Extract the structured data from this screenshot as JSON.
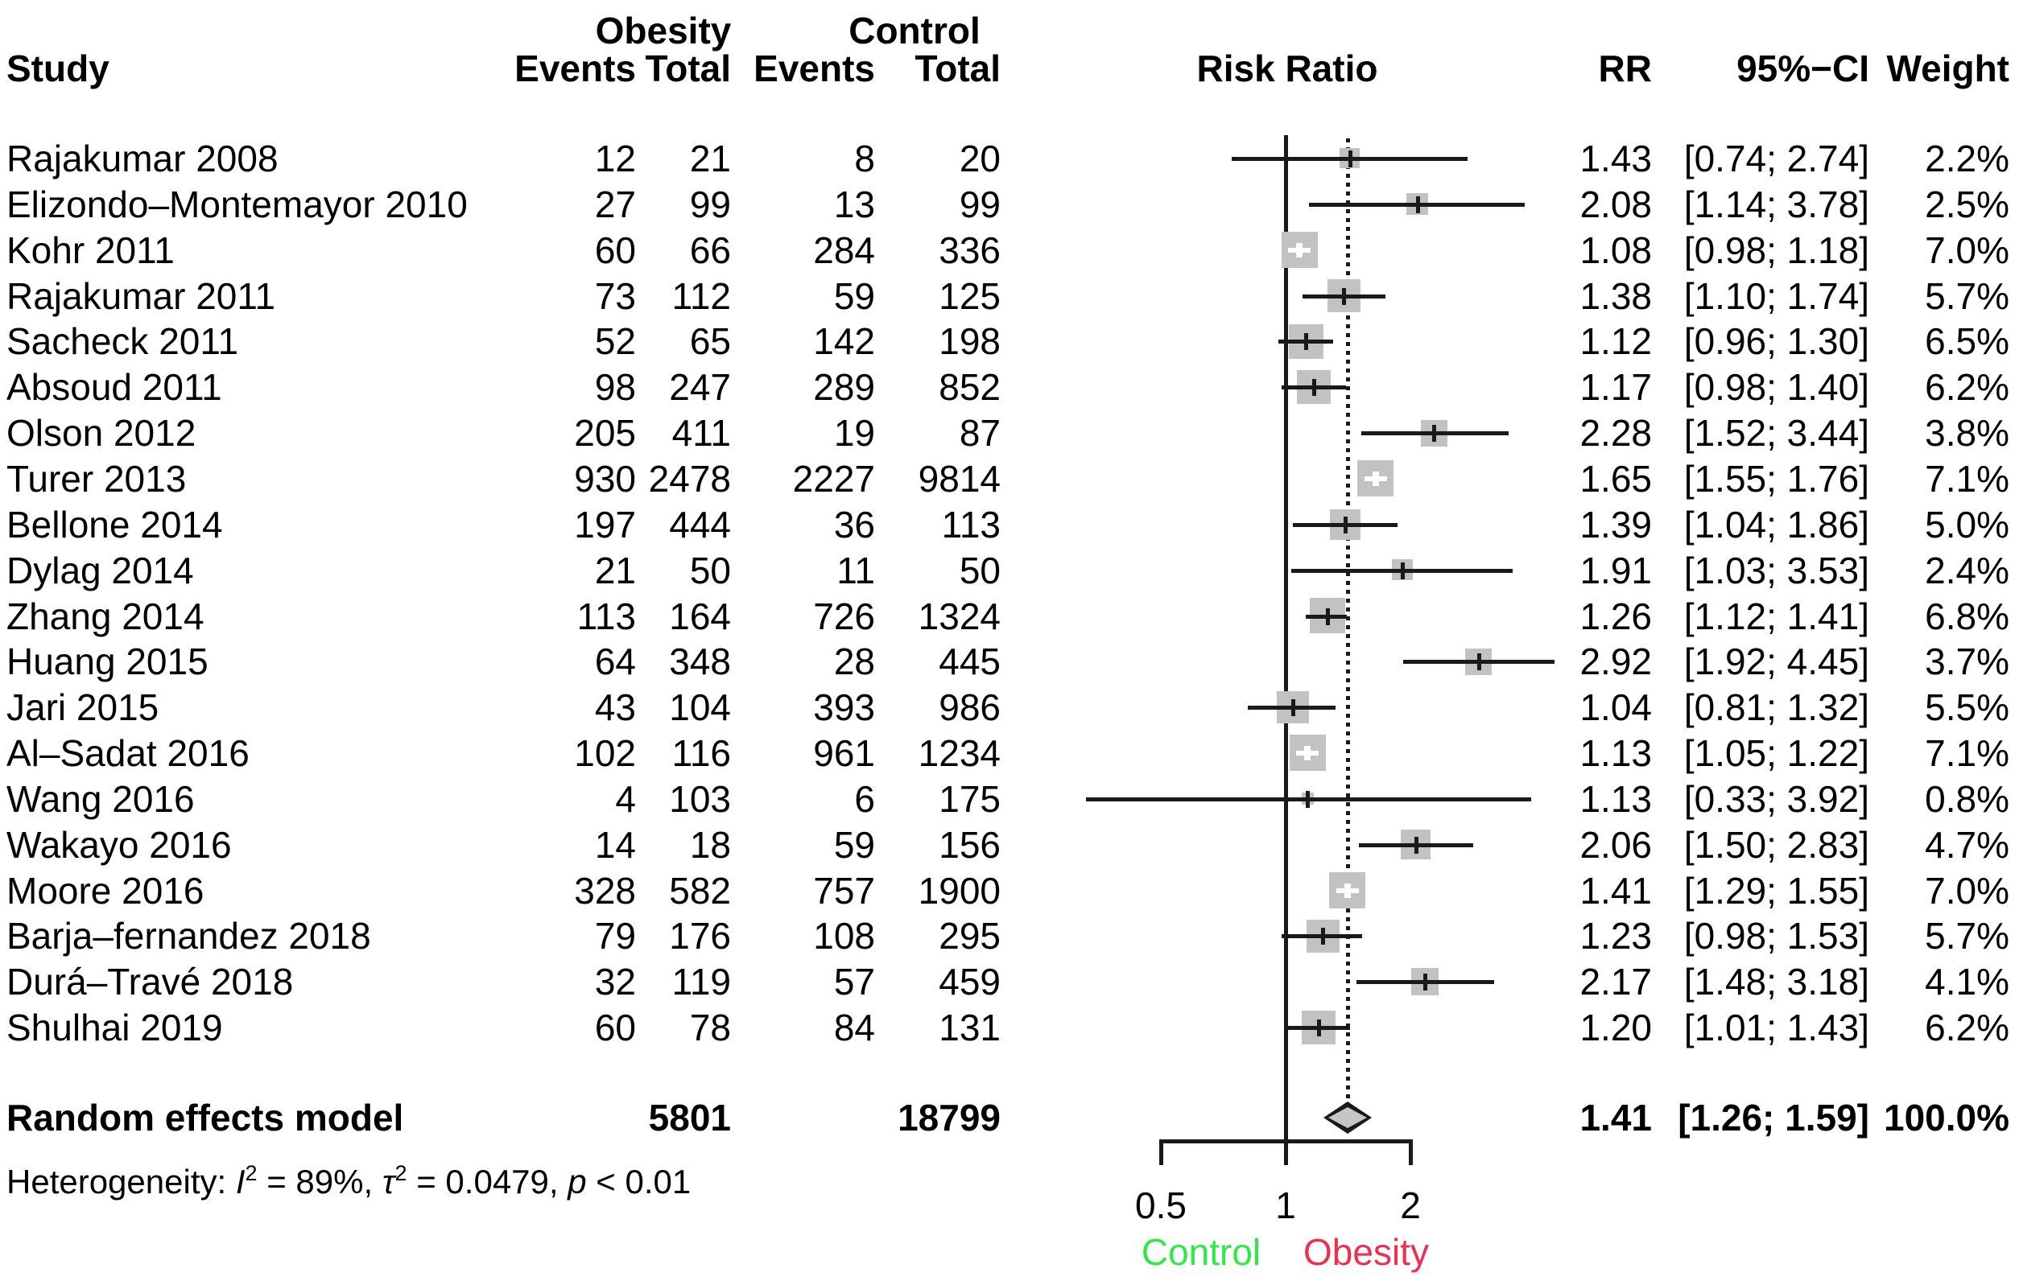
{
  "header": {
    "group1": "Obesity",
    "group2": "Control",
    "study": "Study",
    "events_obesity": "Events",
    "total_obesity": "Total",
    "events_control": "Events",
    "total_control": "Total",
    "risk_ratio": "Risk Ratio",
    "rr": "RR",
    "ci": "95%−CI",
    "weight": "Weight"
  },
  "heterogeneity_segments": [
    {
      "t": "Heterogeneity: "
    },
    {
      "t": "I",
      "style": "i"
    },
    {
      "t": "2",
      "style": "sup"
    },
    {
      "t": " = 89%, "
    },
    {
      "t": "τ",
      "style": "i"
    },
    {
      "t": "2",
      "style": "sup"
    },
    {
      "t": " = 0.0479, "
    },
    {
      "t": "p",
      "style": "i"
    },
    {
      "t": " < 0.01"
    }
  ],
  "axis": {
    "ticks": [
      {
        "label": "0.5",
        "value": 0.5
      },
      {
        "label": "1",
        "value": 1
      },
      {
        "label": "2",
        "value": 2
      }
    ],
    "left_label": "Control",
    "right_label": "Obesity"
  },
  "colors": {
    "control_label": "#31e946",
    "obesity_label": "#ee2f4d",
    "box": "#c2c2c2",
    "diamond": "#c6c6c6",
    "ink": "#1a1a1a"
  },
  "chart_data": {
    "type": "scatter",
    "subtype": "forest_plot_meta_analysis",
    "effect_measure": "Risk Ratio",
    "x_scale": "log",
    "x_ticks": [
      0.5,
      1,
      2
    ],
    "xlim": [
      0.33,
      4.45
    ],
    "direction_labels": {
      "left": "Control",
      "right": "Obesity"
    },
    "studies": [
      {
        "name": "Rajakumar 2008",
        "obesity_events": 12,
        "obesity_total": 21,
        "control_events": 8,
        "control_total": 20,
        "rr": 1.43,
        "ci_low": 0.74,
        "ci_high": 2.74,
        "weight_pct": 2.2
      },
      {
        "name": "Elizondo–Montemayor 2010",
        "obesity_events": 27,
        "obesity_total": 99,
        "control_events": 13,
        "control_total": 99,
        "rr": 2.08,
        "ci_low": 1.14,
        "ci_high": 3.78,
        "weight_pct": 2.5
      },
      {
        "name": "Kohr 2011",
        "obesity_events": 60,
        "obesity_total": 66,
        "control_events": 284,
        "control_total": 336,
        "rr": 1.08,
        "ci_low": 0.98,
        "ci_high": 1.18,
        "weight_pct": 7.0
      },
      {
        "name": "Rajakumar 2011",
        "obesity_events": 73,
        "obesity_total": 112,
        "control_events": 59,
        "control_total": 125,
        "rr": 1.38,
        "ci_low": 1.1,
        "ci_high": 1.74,
        "weight_pct": 5.7
      },
      {
        "name": "Sacheck 2011",
        "obesity_events": 52,
        "obesity_total": 65,
        "control_events": 142,
        "control_total": 198,
        "rr": 1.12,
        "ci_low": 0.96,
        "ci_high": 1.3,
        "weight_pct": 6.5
      },
      {
        "name": "Absoud 2011",
        "obesity_events": 98,
        "obesity_total": 247,
        "control_events": 289,
        "control_total": 852,
        "rr": 1.17,
        "ci_low": 0.98,
        "ci_high": 1.4,
        "weight_pct": 6.2
      },
      {
        "name": "Olson 2012",
        "obesity_events": 205,
        "obesity_total": 411,
        "control_events": 19,
        "control_total": 87,
        "rr": 2.28,
        "ci_low": 1.52,
        "ci_high": 3.44,
        "weight_pct": 3.8
      },
      {
        "name": "Turer 2013",
        "obesity_events": 930,
        "obesity_total": 2478,
        "control_events": 2227,
        "control_total": 9814,
        "rr": 1.65,
        "ci_low": 1.55,
        "ci_high": 1.76,
        "weight_pct": 7.1
      },
      {
        "name": "Bellone 2014",
        "obesity_events": 197,
        "obesity_total": 444,
        "control_events": 36,
        "control_total": 113,
        "rr": 1.39,
        "ci_low": 1.04,
        "ci_high": 1.86,
        "weight_pct": 5.0
      },
      {
        "name": "Dylag 2014",
        "obesity_events": 21,
        "obesity_total": 50,
        "control_events": 11,
        "control_total": 50,
        "rr": 1.91,
        "ci_low": 1.03,
        "ci_high": 3.53,
        "weight_pct": 2.4
      },
      {
        "name": "Zhang 2014",
        "obesity_events": 113,
        "obesity_total": 164,
        "control_events": 726,
        "control_total": 1324,
        "rr": 1.26,
        "ci_low": 1.12,
        "ci_high": 1.41,
        "weight_pct": 6.8
      },
      {
        "name": "Huang 2015",
        "obesity_events": 64,
        "obesity_total": 348,
        "control_events": 28,
        "control_total": 445,
        "rr": 2.92,
        "ci_low": 1.92,
        "ci_high": 4.45,
        "weight_pct": 3.7
      },
      {
        "name": "Jari 2015",
        "obesity_events": 43,
        "obesity_total": 104,
        "control_events": 393,
        "control_total": 986,
        "rr": 1.04,
        "ci_low": 0.81,
        "ci_high": 1.32,
        "weight_pct": 5.5
      },
      {
        "name": "Al–Sadat 2016",
        "obesity_events": 102,
        "obesity_total": 116,
        "control_events": 961,
        "control_total": 1234,
        "rr": 1.13,
        "ci_low": 1.05,
        "ci_high": 1.22,
        "weight_pct": 7.1
      },
      {
        "name": "Wang 2016",
        "obesity_events": 4,
        "obesity_total": 103,
        "control_events": 6,
        "control_total": 175,
        "rr": 1.13,
        "ci_low": 0.33,
        "ci_high": 3.92,
        "weight_pct": 0.8
      },
      {
        "name": "Wakayo 2016",
        "obesity_events": 14,
        "obesity_total": 18,
        "control_events": 59,
        "control_total": 156,
        "rr": 2.06,
        "ci_low": 1.5,
        "ci_high": 2.83,
        "weight_pct": 4.7
      },
      {
        "name": "Moore 2016",
        "obesity_events": 328,
        "obesity_total": 582,
        "control_events": 757,
        "control_total": 1900,
        "rr": 1.41,
        "ci_low": 1.29,
        "ci_high": 1.55,
        "weight_pct": 7.0
      },
      {
        "name": "Barja–fernandez 2018",
        "obesity_events": 79,
        "obesity_total": 176,
        "control_events": 108,
        "control_total": 295,
        "rr": 1.23,
        "ci_low": 0.98,
        "ci_high": 1.53,
        "weight_pct": 5.7
      },
      {
        "name": "Durá–Travé 2018",
        "obesity_events": 32,
        "obesity_total": 119,
        "control_events": 57,
        "control_total": 459,
        "rr": 2.17,
        "ci_low": 1.48,
        "ci_high": 3.18,
        "weight_pct": 4.1
      },
      {
        "name": "Shulhai 2019",
        "obesity_events": 60,
        "obesity_total": 78,
        "control_events": 84,
        "control_total": 131,
        "rr": 1.2,
        "ci_low": 1.01,
        "ci_high": 1.43,
        "weight_pct": 6.2
      }
    ],
    "pooled": {
      "label": "Random effects model",
      "obesity_total": 5801,
      "control_total": 18799,
      "rr": 1.41,
      "ci_low": 1.26,
      "ci_high": 1.59,
      "weight_pct": 100.0
    },
    "heterogeneity": {
      "I2": "89%",
      "tau2": 0.0479,
      "p": "< 0.01"
    }
  }
}
